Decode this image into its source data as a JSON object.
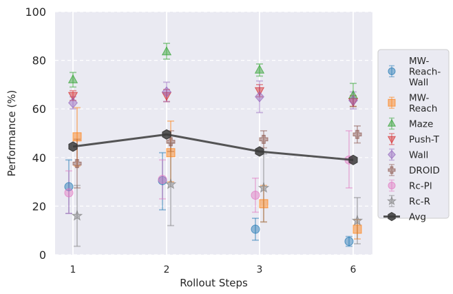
{
  "chart_data": {
    "type": "scatter",
    "xlabel": "Rollout Steps",
    "ylabel": "Performance (%)",
    "categories": [
      "1",
      "2",
      "3",
      "6"
    ],
    "ylim": [
      0,
      100
    ],
    "yticks": [
      "0",
      "20",
      "40",
      "60",
      "80",
      "100"
    ],
    "grid": true,
    "legend_position": "right",
    "series": [
      {
        "name": "MW-Reach-Wall",
        "legend_lines": [
          "MW-",
          "Reach-",
          "Wall"
        ],
        "marker": "circle",
        "color": "#1f77b4",
        "values": [
          28.0,
          30.5,
          10.5,
          5.5
        ],
        "lower": [
          17.0,
          18.5,
          6.0,
          3.5
        ],
        "upper": [
          39.0,
          42.0,
          15.0,
          7.5
        ]
      },
      {
        "name": "MW-Reach",
        "legend_lines": [
          "MW-",
          "Reach"
        ],
        "marker": "square",
        "color": "#ff7f0e",
        "values": [
          48.5,
          42.0,
          21.0,
          10.5
        ],
        "lower": [
          36.5,
          30.0,
          13.5,
          6.5
        ],
        "upper": [
          60.5,
          55.0,
          28.5,
          14.5
        ]
      },
      {
        "name": "Maze",
        "legend_lines": [
          "Maze"
        ],
        "marker": "triangle-up",
        "color": "#2ca02c",
        "values": [
          72.0,
          83.5,
          76.0,
          65.5
        ],
        "lower": [
          69.0,
          80.5,
          73.5,
          61.0
        ],
        "upper": [
          75.0,
          87.0,
          78.5,
          70.5
        ]
      },
      {
        "name": "Push-T",
        "legend_lines": [
          "Push-T"
        ],
        "marker": "triangle-down",
        "color": "#d62728",
        "values": [
          65.5,
          65.5,
          67.5,
          63.0
        ],
        "lower": [
          63.5,
          63.0,
          65.0,
          61.0
        ],
        "upper": [
          67.5,
          68.0,
          70.0,
          65.5
        ]
      },
      {
        "name": "Wall",
        "legend_lines": [
          "Wall"
        ],
        "marker": "diamond",
        "color": "#9467bd",
        "values": [
          62.5,
          67.0,
          65.0,
          63.5
        ],
        "lower": [
          60.0,
          63.0,
          58.5,
          60.0
        ],
        "upper": [
          65.0,
          71.0,
          71.5,
          67.0
        ]
      },
      {
        "name": "DROID",
        "legend_lines": [
          "DROID"
        ],
        "marker": "plus-filled",
        "color": "#8c564b",
        "values": [
          37.5,
          46.5,
          47.5,
          49.5
        ],
        "lower": [
          27.5,
          42.5,
          44.0,
          46.0
        ],
        "upper": [
          47.5,
          51.0,
          51.0,
          53.0
        ]
      },
      {
        "name": "Rc-Pl",
        "legend_lines": [
          "Rc-Pl"
        ],
        "marker": "circle",
        "color": "#e377c2",
        "values": [
          25.5,
          31.0,
          24.5,
          39.0
        ],
        "lower": [
          17.0,
          23.0,
          17.5,
          27.5
        ],
        "upper": [
          34.5,
          39.0,
          31.5,
          51.0
        ]
      },
      {
        "name": "Rc-R",
        "legend_lines": [
          "Rc-R"
        ],
        "marker": "star",
        "color": "#7f7f7f",
        "values": [
          16.0,
          29.0,
          27.5,
          14.0
        ],
        "lower": [
          3.5,
          12.0,
          13.5,
          4.5
        ],
        "upper": [
          28.5,
          46.0,
          41.5,
          23.5
        ]
      },
      {
        "name": "Avg",
        "legend_lines": [
          "Avg"
        ],
        "marker": "hexagon",
        "color": "#3a3a3a",
        "values": [
          44.5,
          49.5,
          42.5,
          39.0
        ],
        "lower": [],
        "upper": []
      }
    ]
  }
}
